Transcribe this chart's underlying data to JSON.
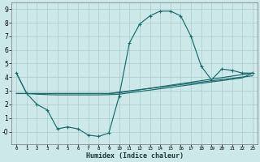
{
  "xlabel": "Humidex (Indice chaleur)",
  "bg_color": "#cce8e8",
  "grid_color": "#aacccc",
  "line_color": "#1a6b6b",
  "xlim": [
    -0.5,
    23.5
  ],
  "ylim": [
    -0.9,
    9.5
  ],
  "xtick_vals": [
    0,
    1,
    2,
    3,
    4,
    5,
    6,
    7,
    8,
    9,
    10,
    11,
    12,
    13,
    14,
    15,
    16,
    17,
    18,
    19,
    20,
    21,
    22,
    23
  ],
  "ytick_vals": [
    0,
    1,
    2,
    3,
    4,
    5,
    6,
    7,
    8,
    9
  ],
  "ytick_labels": [
    "-0",
    "1",
    "2",
    "3",
    "4",
    "5",
    "6",
    "7",
    "8",
    "9"
  ],
  "main_x": [
    0,
    1,
    2,
    3,
    4,
    5,
    6,
    7,
    8,
    9,
    10,
    11,
    12,
    13,
    14,
    15,
    16,
    17,
    18,
    19,
    20,
    21,
    22,
    23
  ],
  "main_y": [
    4.3,
    2.8,
    2.0,
    1.6,
    0.2,
    0.35,
    0.2,
    -0.25,
    -0.35,
    -0.1,
    2.6,
    6.5,
    7.9,
    8.5,
    8.85,
    8.85,
    8.5,
    7.0,
    4.8,
    3.8,
    4.6,
    4.5,
    4.3,
    4.3
  ],
  "line2_x": [
    0,
    1,
    2,
    3,
    4,
    5,
    6,
    7,
    8,
    9,
    10,
    11,
    12,
    13,
    14,
    15,
    16,
    17,
    18,
    19,
    20,
    21,
    22,
    23
  ],
  "line2_y": [
    4.3,
    2.8,
    2.75,
    2.72,
    2.7,
    2.7,
    2.7,
    2.7,
    2.7,
    2.72,
    2.75,
    2.85,
    2.95,
    3.05,
    3.15,
    3.25,
    3.35,
    3.45,
    3.55,
    3.65,
    3.75,
    3.85,
    3.95,
    4.3
  ],
  "line3_x": [
    0,
    1,
    9,
    10,
    23
  ],
  "line3_y": [
    2.8,
    2.8,
    2.8,
    2.85,
    4.3
  ],
  "line4_x": [
    0,
    1,
    9,
    10,
    23
  ],
  "line4_y": [
    2.8,
    2.8,
    2.8,
    2.9,
    4.1
  ]
}
